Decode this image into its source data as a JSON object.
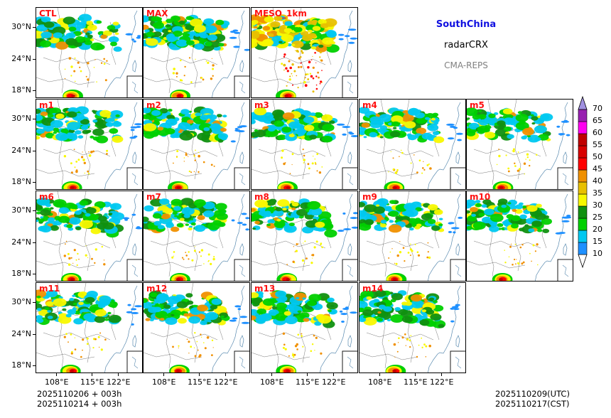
{
  "header": {
    "region": "SouthChina",
    "variable": "radarCRX",
    "system": "CMA-REPS",
    "region_color": "#1010e0",
    "system_color": "#808080"
  },
  "panels": [
    {
      "label": "CTL"
    },
    {
      "label": "MAX"
    },
    {
      "label": "MESO_1km"
    },
    {
      "label": "m1"
    },
    {
      "label": "m2"
    },
    {
      "label": "m3"
    },
    {
      "label": "m4"
    },
    {
      "label": "m5"
    },
    {
      "label": "m6"
    },
    {
      "label": "m7"
    },
    {
      "label": "m8"
    },
    {
      "label": "m9"
    },
    {
      "label": "m10"
    },
    {
      "label": "m11"
    },
    {
      "label": "m12"
    },
    {
      "label": "m13"
    },
    {
      "label": "m14"
    }
  ],
  "axes": {
    "lat_ticks": [
      "30°N",
      "24°N",
      "18°N"
    ],
    "lon_ticks": [
      "108°E",
      "115°E",
      "122°E"
    ]
  },
  "colorbar": {
    "levels": [
      "10",
      "15",
      "20",
      "25",
      "30",
      "35",
      "40",
      "45",
      "50",
      "55",
      "60",
      "65",
      "70"
    ],
    "colors": [
      "#1e90ff",
      "#00c8f0",
      "#00d000",
      "#109010",
      "#f8f800",
      "#e8c000",
      "#f09000",
      "#ff0000",
      "#d80000",
      "#c00000",
      "#ff00f0",
      "#9820b0",
      "#a090e0"
    ]
  },
  "footer": {
    "init_line1": "2025110206  +  003h",
    "init_line2": "2025110214  +  003h",
    "valid_utc": "2025110209(UTC)",
    "valid_cst": "2025110217(CST)"
  }
}
